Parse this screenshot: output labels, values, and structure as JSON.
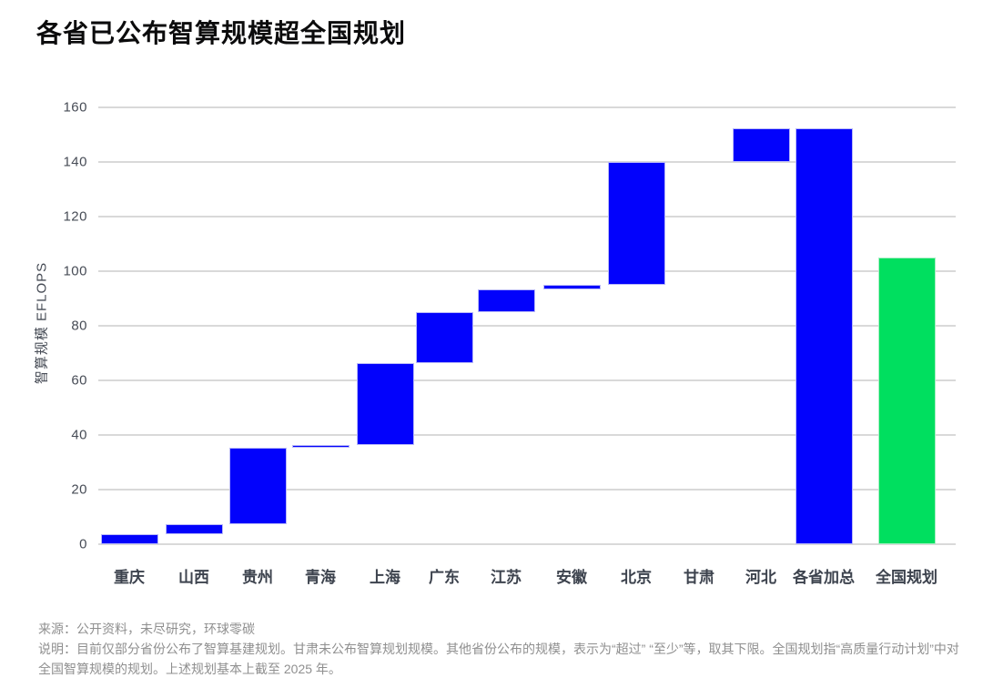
{
  "page_title": "各省已公布智算规模超全国规划",
  "chart_data": {
    "type": "bar",
    "subtype": "waterfall",
    "title": "各省已公布智算规模超全国规划",
    "xlabel": "",
    "ylabel": "智算规模 EFLOPS",
    "ylim": [
      0,
      160
    ],
    "yticks": [
      0,
      20,
      40,
      60,
      80,
      100,
      120,
      140,
      160
    ],
    "grid": true,
    "legend": "none",
    "colors": {
      "province_bar": "#0202FC",
      "national_plan_bar": "#00DF5F",
      "gridline": "#D9D9D9"
    },
    "categories": [
      "重庆",
      "山西",
      "贵州",
      "青海",
      "上海",
      "广东",
      "江苏",
      "安徽",
      "北京",
      "甘肃",
      "河北",
      "各省加总",
      "全国规划"
    ],
    "bars": [
      {
        "label": "重庆",
        "start": 0,
        "end": 3.6,
        "value": 3.6,
        "color": "blue",
        "published": true
      },
      {
        "label": "山西",
        "start": 3.6,
        "end": 7.4,
        "value": 3.8,
        "color": "blue",
        "published": true
      },
      {
        "label": "贵州",
        "start": 7.4,
        "end": 35.3,
        "value": 27.9,
        "color": "blue",
        "published": true
      },
      {
        "label": "青海",
        "start": 35.3,
        "end": 36.3,
        "value": 1.0,
        "color": "blue",
        "published": true
      },
      {
        "label": "上海",
        "start": 36.3,
        "end": 66.2,
        "value": 29.9,
        "color": "blue",
        "published": true
      },
      {
        "label": "广东",
        "start": 66.2,
        "end": 84.9,
        "value": 18.7,
        "color": "blue",
        "published": true
      },
      {
        "label": "江苏",
        "start": 84.9,
        "end": 93.3,
        "value": 8.4,
        "color": "blue",
        "published": true
      },
      {
        "label": "安徽",
        "start": 93.3,
        "end": 95.0,
        "value": 1.7,
        "color": "blue",
        "published": true
      },
      {
        "label": "北京",
        "start": 95.0,
        "end": 140.1,
        "value": 45.1,
        "color": "blue",
        "published": true
      },
      {
        "label": "甘肃",
        "start": 140.1,
        "end": 140.1,
        "value": null,
        "color": "blue",
        "published": false
      },
      {
        "label": "河北",
        "start": 140.1,
        "end": 152.5,
        "value": 12.4,
        "color": "blue",
        "published": true
      },
      {
        "label": "各省加总",
        "start": 0,
        "end": 152.5,
        "value": 152.5,
        "color": "blue",
        "published": true
      },
      {
        "label": "全国规划",
        "start": 0,
        "end": 105,
        "value": 105,
        "color": "green",
        "published": true
      }
    ]
  },
  "footer": {
    "source": "来源：公开资料，未尽研究，环球零碳",
    "note": "说明：目前仅部分省份公布了智算基建规划。甘肃未公布智算规划规模。其他省份公布的规模，表示为“超过” “至少”等，取其下限。全国规划指“高质量行动计划”中对全国智算规模的规划。上述规划基本上截至 2025 年。"
  }
}
